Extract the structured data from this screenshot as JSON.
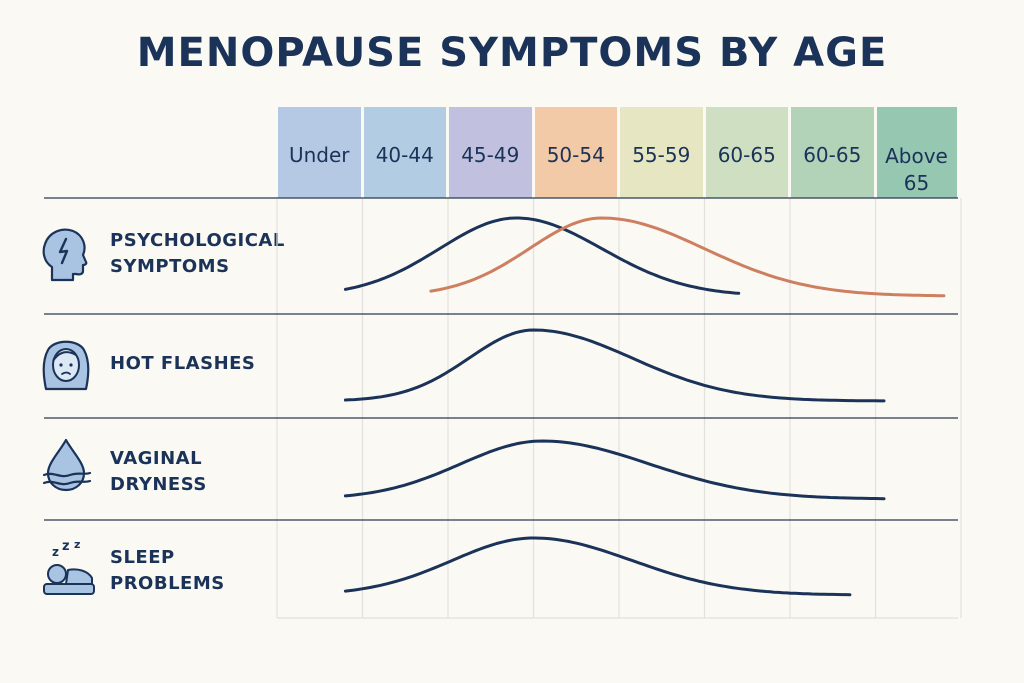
{
  "chart_data": {
    "type": "line",
    "title": "MENOPAUSE SYMPTOMS BY AGE",
    "categories": [
      "Under",
      "40-44",
      "45-49",
      "50-54",
      "55-59",
      "60-65",
      "60-65",
      "Above 65"
    ],
    "category_colors": [
      "#b5c8e4",
      "#b2cde3",
      "#c1c1df",
      "#f3caa8",
      "#e6e6c2",
      "#cfdfc1",
      "#b3d3b8",
      "#96c7b1"
    ],
    "x_range": [
      0,
      8
    ],
    "rows": [
      {
        "label": "PSYCHOLOGICAL SYMPTOMS",
        "icon": "head-icon",
        "series": [
          {
            "name": "navy",
            "color": "#1b3358",
            "start": 0.8,
            "end": 5.4,
            "peak": 2.8,
            "sigma_left": 0.9,
            "sigma_right": 1.0,
            "floor": 0.0
          },
          {
            "name": "orange",
            "color": "#cd7f5f",
            "start": 1.8,
            "end": 7.8,
            "peak": 3.8,
            "sigma_left": 0.85,
            "sigma_right": 1.2,
            "floor": 0.0
          }
        ]
      },
      {
        "label": "HOT FLASHES",
        "icon": "woman-icon",
        "series": [
          {
            "name": "navy",
            "color": "#1b3358",
            "start": 0.8,
            "end": 7.1,
            "peak": 3.0,
            "sigma_left": 0.75,
            "sigma_right": 1.15,
            "floor": 0.0
          }
        ]
      },
      {
        "label": "VAGINAL DRYNESS",
        "icon": "drop-icon",
        "series": [
          {
            "name": "navy",
            "color": "#1b3358",
            "start": 0.8,
            "end": 7.1,
            "peak": 3.1,
            "sigma_left": 0.95,
            "sigma_right": 1.25,
            "floor": 0.0
          }
        ]
      },
      {
        "label": "SLEEP PROBLEMS",
        "icon": "sleep-icon",
        "series": [
          {
            "name": "navy",
            "color": "#1b3358",
            "start": 0.8,
            "end": 6.7,
            "peak": 3.0,
            "sigma_left": 0.95,
            "sigma_right": 1.15,
            "floor": 0.0
          }
        ]
      }
    ]
  }
}
